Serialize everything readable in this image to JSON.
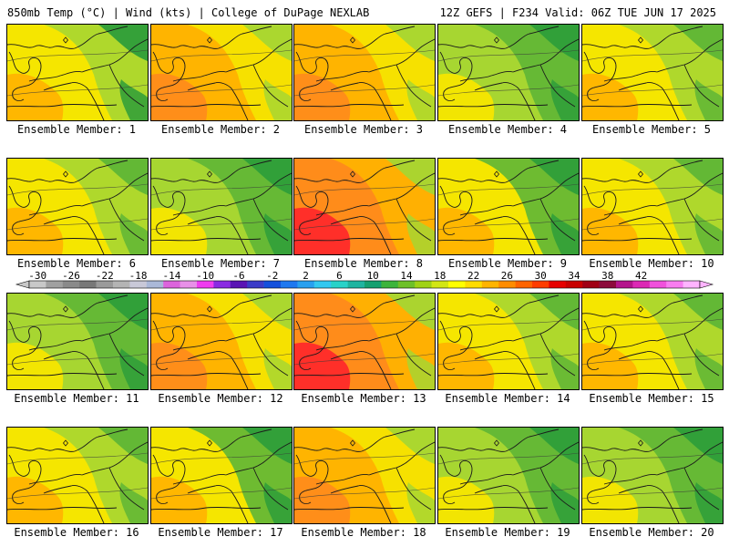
{
  "header": {
    "left": "850mb Temp (°C) | Wind (kts) | College of DuPage NEXLAB",
    "right": "12Z GEFS | F234 Valid: 06Z TUE JUN 17 2025"
  },
  "colorbar": {
    "ticks": [
      "-30",
      "-26",
      "-22",
      "-18",
      "-14",
      "-10",
      "-6",
      "-2",
      "2",
      "6",
      "10",
      "14",
      "18",
      "22",
      "26",
      "30",
      "34",
      "38",
      "42"
    ],
    "colors": [
      "#c8c8c8",
      "#a0a0a0",
      "#8a8a8a",
      "#787878",
      "#9a9a9a",
      "#b4b4b4",
      "#c8c8d8",
      "#aab8d8",
      "#dc64dc",
      "#e890e8",
      "#f03cf0",
      "#8a2be2",
      "#5a14b4",
      "#3c3cc8",
      "#1450dc",
      "#1e78f0",
      "#28a0f0",
      "#32c8f0",
      "#28d2c8",
      "#1eb4a0",
      "#14a070",
      "#3cb43c",
      "#6ec028",
      "#a0d214",
      "#d2e614",
      "#ffff00",
      "#ffdc00",
      "#ffb400",
      "#ff8c00",
      "#ff6400",
      "#ff3c00",
      "#e60000",
      "#c80000",
      "#a00014",
      "#8c0a3c",
      "#b4148c",
      "#dc28b4",
      "#f050dc",
      "#f87cf0",
      "#ffb4ff"
    ]
  },
  "map_colors": {
    "warm_red": "#ff2a2a",
    "orange": "#ff8c1a",
    "amber": "#ffb400",
    "yellow": "#f5e600",
    "light_green": "#a7d631",
    "green": "#5fb636",
    "dark_green": "#2e9e3a"
  },
  "panels": [
    {
      "label": "Ensemble Member: 1",
      "theme": "west-warm"
    },
    {
      "label": "Ensemble Member: 2",
      "theme": "warm"
    },
    {
      "label": "Ensemble Member: 3",
      "theme": "warm"
    },
    {
      "label": "Ensemble Member: 4",
      "theme": "cool"
    },
    {
      "label": "Ensemble Member: 5",
      "theme": "mild"
    },
    {
      "label": "Ensemble Member: 6",
      "theme": "mild"
    },
    {
      "label": "Ensemble Member: 7",
      "theme": "cool"
    },
    {
      "label": "Ensemble Member: 8",
      "theme": "hot"
    },
    {
      "label": "Ensemble Member: 9",
      "theme": "east-cool"
    },
    {
      "label": "Ensemble Member: 10",
      "theme": "mild"
    },
    {
      "label": "Ensemble Member: 11",
      "theme": "cool"
    },
    {
      "label": "Ensemble Member: 12",
      "theme": "warm"
    },
    {
      "label": "Ensemble Member: 13",
      "theme": "hot"
    },
    {
      "label": "Ensemble Member: 14",
      "theme": "mild"
    },
    {
      "label": "Ensemble Member: 15",
      "theme": "mild"
    },
    {
      "label": "Ensemble Member: 16",
      "theme": "mild"
    },
    {
      "label": "Ensemble Member: 17",
      "theme": "east-cool"
    },
    {
      "label": "Ensemble Member: 18",
      "theme": "warm"
    },
    {
      "label": "Ensemble Member: 19",
      "theme": "cool"
    },
    {
      "label": "Ensemble Member: 20",
      "theme": "cool"
    }
  ]
}
